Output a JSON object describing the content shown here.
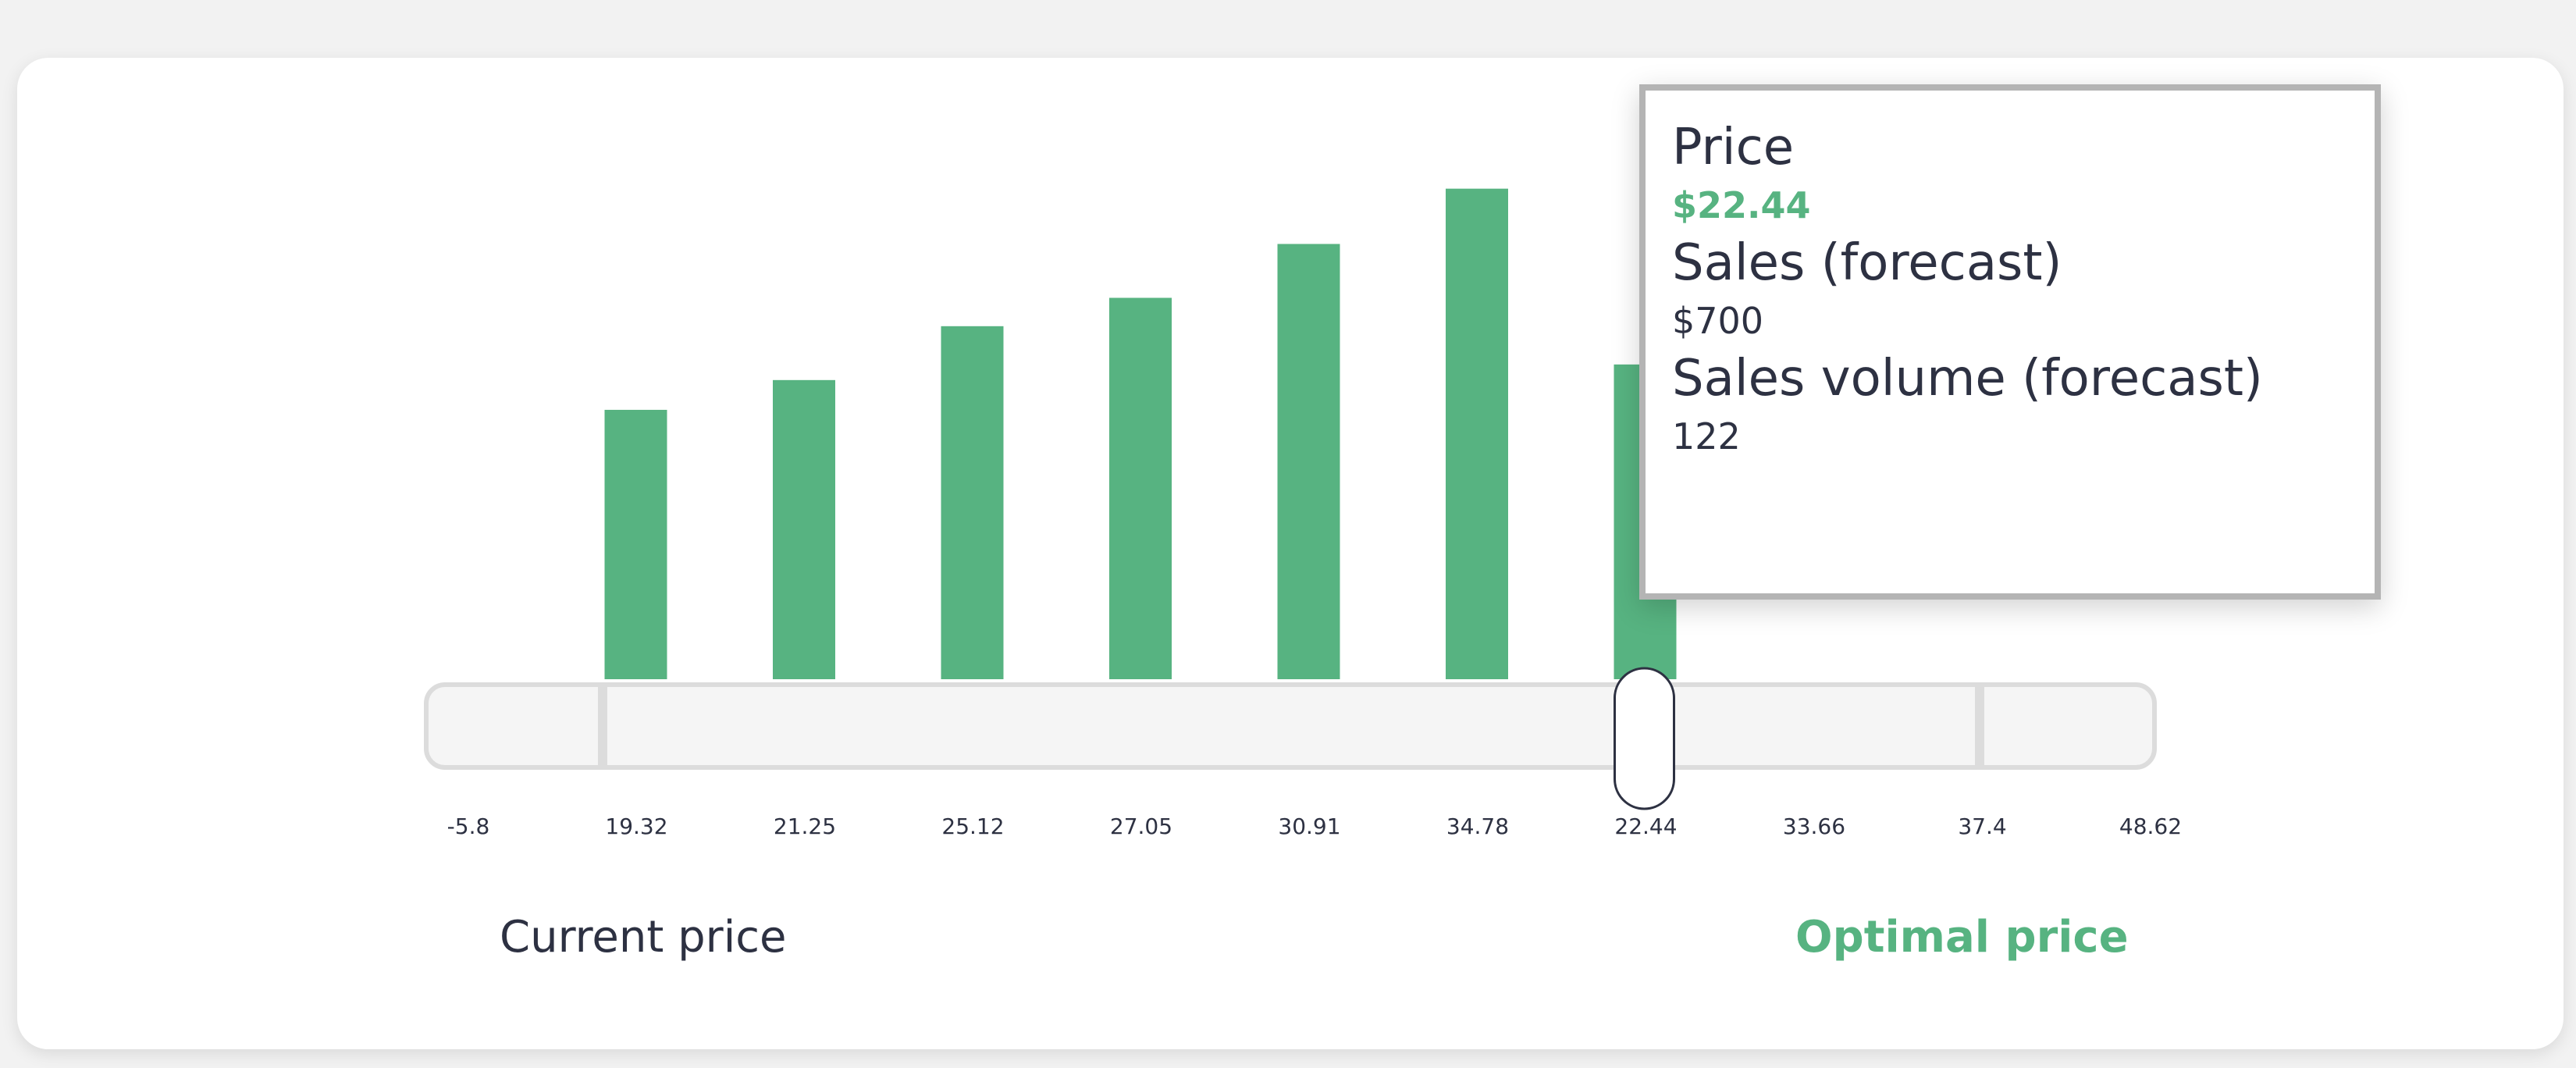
{
  "chart_data": {
    "type": "bar",
    "tick_labels": [
      "-5.8",
      "19.32",
      "21.25",
      "25.12",
      "27.05",
      "30.91",
      "34.78",
      "22.44",
      "33.66",
      "37.4",
      "48.62"
    ],
    "bars": [
      {
        "category": "19.32",
        "value": 190
      },
      {
        "category": "21.25",
        "value": 211
      },
      {
        "category": "25.12",
        "value": 249
      },
      {
        "category": "27.05",
        "value": 269
      },
      {
        "category": "30.91",
        "value": 307
      },
      {
        "category": "34.78",
        "value": 346
      },
      {
        "category": "22.44",
        "value": 222
      }
    ],
    "slider": {
      "selected_value": "22.44",
      "selected_index": 7,
      "marker_indices": [
        1,
        9
      ]
    },
    "colors": {
      "bar": "#57b381",
      "track_fill": "#f5f5f5",
      "track_border": "#dcdcdc",
      "marker": "#dcdcdc",
      "handle_fill": "#ffffff",
      "handle_border": "#2d3142"
    }
  },
  "labels": {
    "current_price": "Current price",
    "optimal_price": "Optimal price"
  },
  "tooltip": {
    "price_label": "Price",
    "price_value": "$22.44",
    "sales_label": "Sales (forecast)",
    "sales_value": "$700",
    "volume_label": "Sales volume (forecast)",
    "volume_value": "122"
  }
}
